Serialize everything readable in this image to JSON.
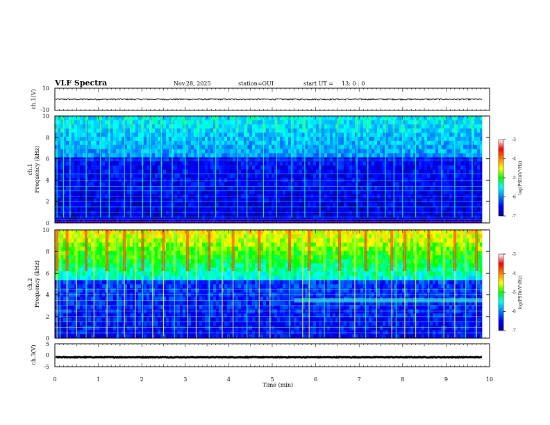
{
  "header": {
    "title": "VLF Spectra",
    "date": "Nov.28, 2025",
    "station": "station=OUI",
    "start_label": "start  UT  =",
    "start_time": "13: 0  : 0"
  },
  "chart_data": {
    "type": "heatmap",
    "x_axis": {
      "label": "Time (min)",
      "range": [
        0,
        10
      ],
      "ticks": [
        "0",
        "1",
        "2",
        "3",
        "4",
        "5",
        "6",
        "7",
        "8",
        "9",
        "10"
      ],
      "data_extent_min": 9.83
    },
    "panels": [
      {
        "id": "ch1-waveform",
        "type": "line",
        "ylabel": "ch.1(V)",
        "ylim": [
          -10,
          10
        ],
        "ticks": [
          "10",
          "-10"
        ],
        "baseline_value": 0,
        "noise_amplitude": 0.6
      },
      {
        "id": "ch1-spectrogram",
        "type": "heatmap",
        "ylabel": "ch.1 Frequency (kHz)",
        "ylim": [
          0,
          10
        ],
        "ticks": [
          "0",
          "2",
          "4",
          "6",
          "8",
          "10"
        ],
        "colorbar": {
          "label": "log(PSD)(V²/Hz)",
          "range": [
            -7,
            -3
          ],
          "ticks": [
            "-3",
            "-4",
            "-5",
            "-6",
            "-7"
          ]
        },
        "harmonic_lines_khz": [
          0.3,
          0.55,
          1.0,
          1.5,
          2.0,
          2.5,
          3.0,
          3.4,
          4.0,
          4.6,
          5.9
        ],
        "sferic_times_min": [
          0.05,
          0.2,
          0.35,
          0.72,
          1.05,
          1.25,
          1.6,
          1.75,
          2.02,
          2.2,
          2.45,
          2.7,
          3.0,
          3.3,
          3.7,
          4.2,
          4.42,
          4.8,
          5.1,
          5.45,
          5.75,
          6.1,
          6.5,
          6.95,
          7.2,
          7.6,
          7.8,
          8.0,
          8.3,
          8.9,
          9.2,
          9.6
        ]
      },
      {
        "id": "ch2-spectrogram",
        "type": "heatmap",
        "ylabel": "ch.2 Frequency (kHz)",
        "ylim": [
          0,
          10
        ],
        "ticks": [
          "0",
          "2",
          "4",
          "6",
          "8",
          "10"
        ],
        "colorbar": {
          "label": "log(PSD)(V²/Hz)",
          "range": [
            -7,
            -3
          ],
          "ticks": [
            "-3",
            "-4",
            "-5",
            "-6",
            "-7"
          ]
        },
        "harmonic_lines_khz": [
          0.5,
          1.0,
          1.5,
          2.0,
          2.5,
          3.0,
          3.5,
          4.0,
          4.5
        ],
        "emission_band": {
          "start_min": 5.5,
          "end_min": 9.83,
          "freq_khz": [
            3.3,
            3.7
          ]
        },
        "sferic_times_min": [
          0.05,
          0.12,
          0.28,
          0.5,
          0.72,
          0.9,
          1.2,
          1.45,
          1.6,
          1.85,
          2.02,
          2.25,
          2.5,
          2.75,
          3.05,
          3.25,
          3.55,
          3.85,
          4.1,
          4.42,
          4.7,
          4.95,
          5.4,
          5.7,
          5.85,
          6.2,
          6.55,
          6.9,
          7.15,
          7.4,
          7.75,
          7.85,
          8.05,
          8.3,
          8.6,
          8.95,
          9.2,
          9.45,
          9.7
        ]
      },
      {
        "id": "ch3-waveform",
        "type": "line",
        "ylabel": "ch.3(V)",
        "ylim": [
          -5,
          5
        ],
        "ticks": [
          "5",
          "0",
          "-5"
        ],
        "baseline_value": -0.9,
        "noise_amplitude": 0.15
      }
    ]
  }
}
